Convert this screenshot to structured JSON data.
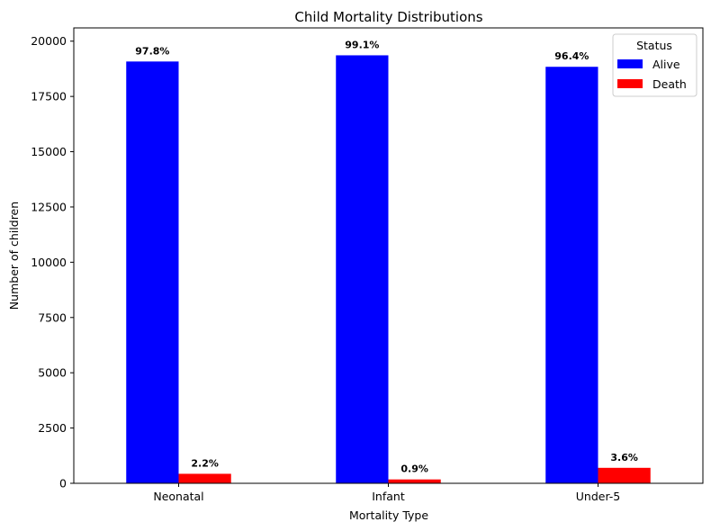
{
  "chart_data": {
    "type": "bar",
    "title": "Child Mortality Distributions",
    "xlabel": "Mortality Type",
    "ylabel": "Number of children",
    "categories": [
      "Neonatal",
      "Infant",
      "Under-5"
    ],
    "series": [
      {
        "name": "Alive",
        "color": "#0000ff",
        "values": [
          19080,
          19360,
          18840
        ],
        "labels": [
          "97.8%",
          "99.1%",
          "96.4%"
        ]
      },
      {
        "name": "Death",
        "color": "#ff0000",
        "values": [
          430,
          175,
          700
        ],
        "labels": [
          "2.2%",
          "0.9%",
          "3.6%"
        ]
      }
    ],
    "ylim": [
      0,
      20600
    ],
    "yticks": [
      0,
      2500,
      5000,
      7500,
      10000,
      12500,
      15000,
      17500,
      20000
    ],
    "grid": false,
    "legend": {
      "title": "Status",
      "placement": "top-right"
    }
  }
}
